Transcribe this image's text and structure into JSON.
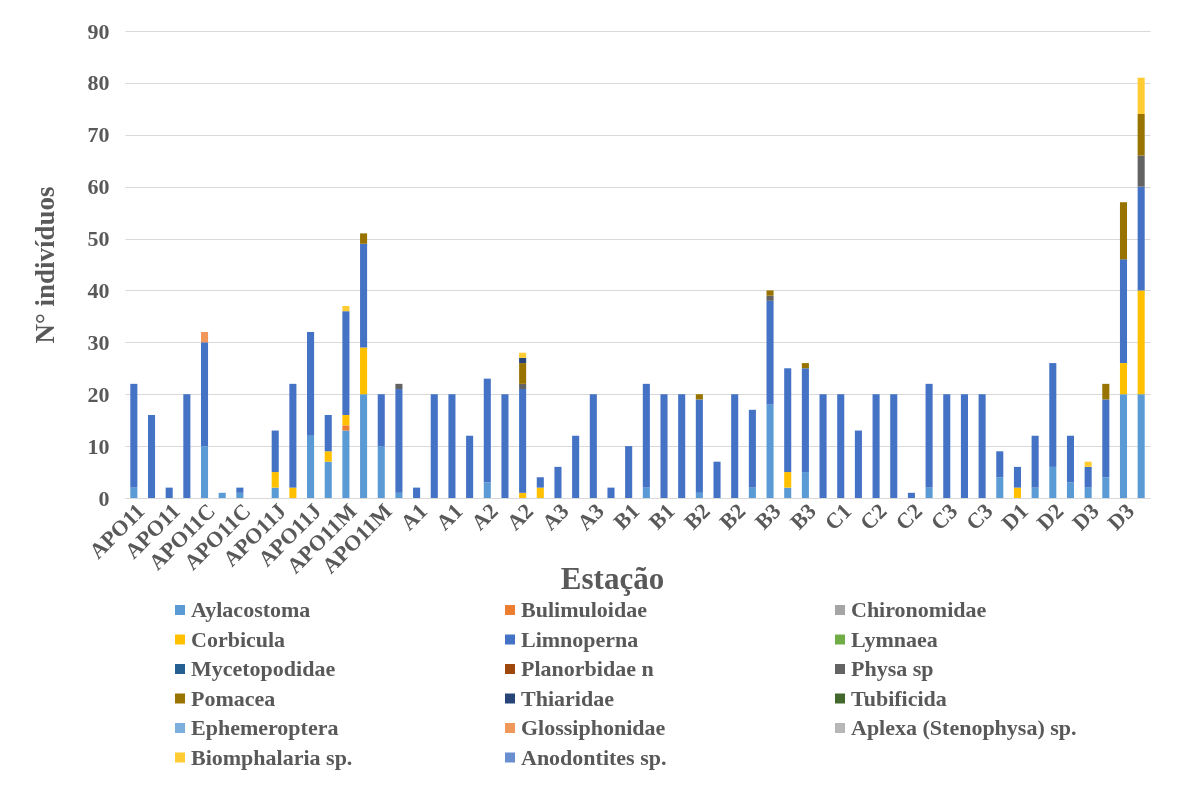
{
  "chart_data": {
    "type": "bar",
    "stacked": true,
    "xlabel": "Estação",
    "ylabel": "N° indivíduos",
    "categories": [
      "APO11",
      null,
      "APO11",
      null,
      "APO11C",
      null,
      "APO11C",
      null,
      "APO11J",
      null,
      "APO11J",
      null,
      "APO11M",
      null,
      "APO11M",
      null,
      "A1",
      null,
      "A1",
      null,
      "A2",
      null,
      "A2",
      null,
      "A3",
      null,
      "A3",
      null,
      "B1",
      null,
      "B1",
      null,
      "B2",
      null,
      "B2",
      null,
      "B3",
      null,
      "B3",
      null,
      "C1",
      null,
      "C2",
      null,
      "C2",
      null,
      "C3",
      null,
      "C3",
      null,
      "D1",
      null,
      "D2",
      null,
      "D3",
      null,
      "D3",
      null
    ],
    "ylim": [
      0,
      90
    ],
    "yticks": [
      0,
      10,
      20,
      30,
      40,
      50,
      60,
      70,
      80,
      90
    ],
    "grid": "y",
    "legend": "bottom",
    "series": [
      {
        "name": "Aylacostoma",
        "color": "#5b9bd5",
        "values": [
          2,
          null,
          null,
          null,
          10,
          1,
          1,
          null,
          2,
          null,
          12,
          7,
          13,
          20,
          10,
          1,
          null,
          null,
          null,
          null,
          3,
          null,
          null,
          null,
          null,
          null,
          null,
          null,
          null,
          2,
          null,
          null,
          1,
          null,
          null,
          2,
          18,
          2,
          5,
          null,
          null,
          null,
          null,
          null,
          null,
          2,
          null,
          null,
          null,
          4,
          null,
          2,
          6,
          3,
          2,
          4,
          20,
          20
        ]
      },
      {
        "name": "Bulimuloidae",
        "color": "#ed7d31",
        "values": [
          null,
          null,
          null,
          null,
          null,
          null,
          null,
          null,
          null,
          null,
          null,
          null,
          1,
          null,
          null,
          null,
          null,
          null,
          null,
          null,
          null,
          null,
          null,
          null,
          null,
          null,
          null,
          null,
          null,
          null,
          null,
          null,
          null,
          null,
          null,
          null,
          null,
          null,
          null,
          null,
          null,
          null,
          null,
          null,
          null,
          null,
          null,
          null,
          null,
          null,
          null,
          null,
          null,
          null,
          null,
          null,
          null,
          null
        ]
      },
      {
        "name": "Chironomidae",
        "color": "#a5a5a5",
        "values": [
          null,
          null,
          null,
          null,
          null,
          null,
          null,
          null,
          null,
          null,
          null,
          null,
          null,
          null,
          null,
          null,
          null,
          null,
          null,
          null,
          null,
          null,
          null,
          null,
          null,
          null,
          null,
          null,
          null,
          null,
          null,
          null,
          null,
          null,
          null,
          null,
          null,
          null,
          null,
          null,
          null,
          null,
          null,
          null,
          null,
          null,
          null,
          null,
          null,
          null,
          null,
          null,
          null,
          null,
          null,
          null,
          null,
          null
        ]
      },
      {
        "name": "Corbicula",
        "color": "#ffc000",
        "values": [
          null,
          null,
          null,
          null,
          null,
          null,
          null,
          null,
          3,
          2,
          null,
          2,
          2,
          9,
          null,
          null,
          null,
          null,
          null,
          null,
          null,
          null,
          1,
          2,
          null,
          null,
          null,
          null,
          null,
          null,
          null,
          null,
          null,
          null,
          null,
          null,
          null,
          3,
          null,
          null,
          null,
          null,
          null,
          null,
          null,
          null,
          null,
          null,
          null,
          null,
          2,
          null,
          null,
          null,
          null,
          null,
          6,
          20
        ]
      },
      {
        "name": "Limnoperna",
        "color": "#4472c4",
        "values": [
          20,
          16,
          2,
          20,
          20,
          null,
          1,
          null,
          8,
          20,
          20,
          7,
          20,
          20,
          10,
          20,
          2,
          20,
          20,
          12,
          20,
          20,
          20,
          2,
          6,
          12,
          20,
          2,
          10,
          20,
          20,
          20,
          18,
          7,
          20,
          15,
          20,
          20,
          20,
          20,
          20,
          13,
          20,
          20,
          1,
          20,
          20,
          20,
          20,
          5,
          4,
          10,
          20,
          9,
          4,
          15,
          20,
          20
        ]
      },
      {
        "name": "Lymnaea",
        "color": "#70ad47",
        "values": [
          null,
          null,
          null,
          null,
          null,
          null,
          null,
          null,
          null,
          null,
          null,
          null,
          null,
          null,
          null,
          null,
          null,
          null,
          null,
          null,
          null,
          null,
          null,
          null,
          null,
          null,
          null,
          null,
          null,
          null,
          null,
          null,
          null,
          null,
          null,
          null,
          null,
          null,
          null,
          null,
          null,
          null,
          null,
          null,
          null,
          null,
          null,
          null,
          null,
          null,
          null,
          null,
          null,
          null,
          null,
          null,
          null,
          null
        ]
      },
      {
        "name": "Mycetopodidae",
        "color": "#255e91",
        "values": [
          null,
          null,
          null,
          null,
          null,
          null,
          null,
          null,
          null,
          null,
          null,
          null,
          null,
          null,
          null,
          null,
          null,
          null,
          null,
          null,
          null,
          null,
          null,
          null,
          null,
          null,
          null,
          null,
          null,
          null,
          null,
          null,
          null,
          null,
          null,
          null,
          null,
          null,
          null,
          null,
          null,
          null,
          null,
          null,
          null,
          null,
          null,
          null,
          null,
          null,
          null,
          null,
          null,
          null,
          null,
          null,
          null,
          null
        ]
      },
      {
        "name": "Planorbidae n",
        "color": "#9e480e",
        "values": [
          null,
          null,
          null,
          null,
          null,
          null,
          null,
          null,
          null,
          null,
          null,
          null,
          null,
          null,
          null,
          null,
          null,
          null,
          null,
          null,
          null,
          null,
          null,
          null,
          null,
          null,
          null,
          null,
          null,
          null,
          null,
          null,
          null,
          null,
          null,
          null,
          null,
          null,
          null,
          null,
          null,
          null,
          null,
          null,
          null,
          null,
          null,
          null,
          null,
          null,
          null,
          null,
          null,
          null,
          null,
          null,
          null,
          null
        ]
      },
      {
        "name": "Physa sp",
        "color": "#636363",
        "values": [
          null,
          null,
          null,
          null,
          null,
          null,
          null,
          null,
          null,
          null,
          null,
          null,
          null,
          null,
          null,
          1,
          null,
          null,
          null,
          null,
          null,
          null,
          1,
          null,
          null,
          null,
          null,
          null,
          null,
          null,
          null,
          null,
          null,
          null,
          null,
          null,
          1,
          null,
          null,
          null,
          null,
          null,
          null,
          null,
          null,
          null,
          null,
          null,
          null,
          null,
          null,
          null,
          null,
          null,
          null,
          null,
          null,
          6
        ]
      },
      {
        "name": "Pomacea",
        "color": "#997300",
        "values": [
          null,
          null,
          null,
          null,
          null,
          null,
          null,
          null,
          null,
          null,
          null,
          null,
          null,
          2,
          null,
          null,
          null,
          null,
          null,
          null,
          null,
          null,
          4,
          null,
          null,
          null,
          null,
          null,
          null,
          null,
          null,
          null,
          1,
          null,
          null,
          null,
          1,
          null,
          1,
          null,
          null,
          null,
          null,
          null,
          null,
          null,
          null,
          null,
          null,
          null,
          null,
          null,
          null,
          null,
          null,
          3,
          11,
          8
        ]
      },
      {
        "name": "Thiaridae",
        "color": "#264478",
        "values": [
          null,
          null,
          null,
          null,
          null,
          null,
          null,
          null,
          null,
          null,
          null,
          null,
          null,
          null,
          null,
          null,
          null,
          null,
          null,
          null,
          null,
          null,
          1,
          null,
          null,
          null,
          null,
          null,
          null,
          null,
          null,
          null,
          null,
          null,
          null,
          null,
          null,
          null,
          null,
          null,
          null,
          null,
          null,
          null,
          null,
          null,
          null,
          null,
          null,
          null,
          null,
          null,
          null,
          null,
          null,
          null,
          null,
          null
        ]
      },
      {
        "name": "Tubificida",
        "color": "#43682b",
        "values": [
          null,
          null,
          null,
          null,
          null,
          null,
          null,
          null,
          null,
          null,
          null,
          null,
          null,
          null,
          null,
          null,
          null,
          null,
          null,
          null,
          null,
          null,
          null,
          null,
          null,
          null,
          null,
          null,
          null,
          null,
          null,
          null,
          null,
          null,
          null,
          null,
          null,
          null,
          null,
          null,
          null,
          null,
          null,
          null,
          null,
          null,
          null,
          null,
          null,
          null,
          null,
          null,
          null,
          null,
          null,
          null,
          null,
          null
        ]
      },
      {
        "name": "Ephemeroptera",
        "color": "#7cafdd",
        "values": [
          null,
          null,
          null,
          null,
          null,
          null,
          null,
          null,
          null,
          null,
          null,
          null,
          null,
          null,
          null,
          null,
          null,
          null,
          null,
          null,
          null,
          null,
          null,
          null,
          null,
          null,
          null,
          null,
          null,
          null,
          null,
          null,
          null,
          null,
          null,
          null,
          null,
          null,
          null,
          null,
          null,
          null,
          null,
          null,
          null,
          null,
          null,
          null,
          null,
          null,
          null,
          null,
          null,
          null,
          null,
          null,
          null,
          null
        ]
      },
      {
        "name": "Glossiphonidae",
        "color": "#f1975a",
        "values": [
          null,
          null,
          null,
          null,
          2,
          null,
          null,
          null,
          null,
          null,
          null,
          null,
          null,
          null,
          null,
          null,
          null,
          null,
          null,
          null,
          null,
          null,
          null,
          null,
          null,
          null,
          null,
          null,
          null,
          null,
          null,
          null,
          null,
          null,
          null,
          null,
          null,
          null,
          null,
          null,
          null,
          null,
          null,
          null,
          null,
          null,
          null,
          null,
          null,
          null,
          null,
          null,
          null,
          null,
          null,
          null,
          null,
          null
        ]
      },
      {
        "name": "Aplexa (Stenophysa) sp.",
        "color": "#b7b7b7",
        "values": [
          null,
          null,
          null,
          null,
          null,
          null,
          null,
          null,
          null,
          null,
          null,
          null,
          null,
          null,
          null,
          null,
          null,
          null,
          null,
          null,
          null,
          null,
          null,
          null,
          null,
          null,
          null,
          null,
          null,
          null,
          null,
          null,
          null,
          null,
          null,
          null,
          null,
          null,
          null,
          null,
          null,
          null,
          null,
          null,
          null,
          null,
          null,
          null,
          null,
          null,
          null,
          null,
          null,
          null,
          null,
          null,
          null,
          null
        ]
      },
      {
        "name": "Biomphalaria sp.",
        "color": "#ffcd33",
        "values": [
          null,
          null,
          null,
          null,
          null,
          null,
          null,
          null,
          null,
          null,
          null,
          null,
          1,
          null,
          null,
          null,
          null,
          null,
          null,
          null,
          null,
          null,
          1,
          null,
          null,
          null,
          null,
          null,
          null,
          null,
          null,
          null,
          null,
          null,
          null,
          null,
          null,
          null,
          null,
          null,
          null,
          null,
          null,
          null,
          null,
          null,
          null,
          null,
          null,
          null,
          null,
          null,
          null,
          null,
          1,
          null,
          null,
          7
        ]
      },
      {
        "name": "Anodontites sp.",
        "color": "#698ed0",
        "values": [
          null,
          null,
          null,
          null,
          null,
          null,
          null,
          null,
          null,
          null,
          null,
          null,
          null,
          null,
          null,
          null,
          null,
          null,
          null,
          null,
          null,
          null,
          null,
          null,
          null,
          null,
          null,
          null,
          null,
          null,
          null,
          null,
          null,
          null,
          null,
          null,
          null,
          null,
          null,
          null,
          null,
          null,
          null,
          null,
          null,
          null,
          null,
          null,
          null,
          null,
          null,
          null,
          null,
          null,
          null,
          null,
          null,
          null
        ]
      }
    ]
  }
}
